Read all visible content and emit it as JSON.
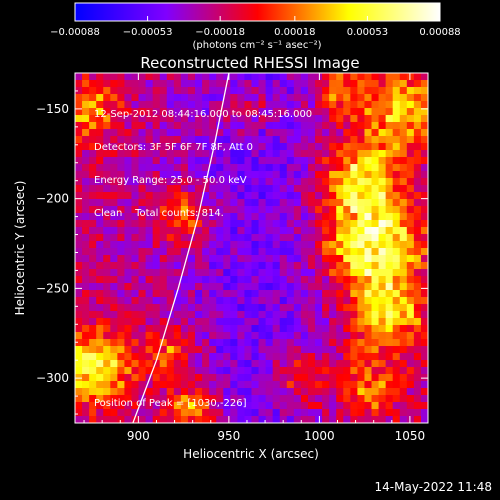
{
  "chart_data": {
    "type": "heatmap",
    "title": "Reconstructed RHESSI Image",
    "xlabel": "Heliocentric X (arcsec)",
    "ylabel": "Heliocentric Y (arcsec)",
    "xlim": [
      865,
      1060
    ],
    "ylim": [
      -325,
      -130
    ],
    "x_ticks": [
      900,
      950,
      1000,
      1050
    ],
    "y_ticks": [
      -150,
      -200,
      -250,
      -300
    ],
    "x_tick_labels": [
      "900",
      "950",
      "1000",
      "1050"
    ],
    "y_tick_labels": [
      "−150",
      "−200",
      "−250",
      "−300"
    ],
    "colorbar": {
      "range": [
        -0.00088,
        0.00088
      ],
      "ticks": [
        -0.00088,
        -0.00053,
        -0.00018,
        0.00018,
        0.00053,
        0.00088
      ],
      "tick_labels": [
        "−0.00088",
        "−0.00053",
        "−0.00018",
        "0.00018",
        "0.00053",
        "0.00088"
      ],
      "label": "(photons cm⁻² s⁻¹ asec⁻²)",
      "colormap": [
        "#0000ff",
        "#8000ff",
        "#ff0000",
        "#ffff00",
        "#ffffff"
      ]
    },
    "annotations": {
      "time_range": "12-Sep-2012 08:44:16.000 to 08:45:16.000",
      "detectors": "Detectors: 3F 5F 6F 7F 8F, Att 0",
      "energy": "Energy Range: 25.0 - 50.0 keV",
      "method": "Clean    Total counts: 814.",
      "peak": "Position of Peak = [1030,-226]"
    },
    "peak": [
      1030,
      -226
    ],
    "limb_curve": [
      [
        897,
        -325
      ],
      [
        910,
        -290
      ],
      [
        922,
        -250
      ],
      [
        933,
        -210
      ],
      [
        942,
        -170
      ],
      [
        950,
        -130
      ]
    ],
    "emission_sources": [
      [
        1030,
        -226,
        0.00088,
        18
      ],
      [
        1022,
        -190,
        0.0007,
        14
      ],
      [
        1038,
        -265,
        0.00062,
        14
      ],
      [
        1045,
        -150,
        0.0006,
        16
      ],
      [
        1028,
        -305,
        0.00045,
        12
      ],
      [
        875,
        -295,
        0.0008,
        14
      ],
      [
        872,
        -150,
        0.0005,
        12
      ],
      [
        925,
        -210,
        0.00045,
        10
      ],
      [
        918,
        -285,
        0.0004,
        10
      ],
      [
        930,
        -318,
        0.00055,
        10
      ],
      [
        990,
        -300,
        0.00035,
        12
      ],
      [
        960,
        -150,
        0.0003,
        10
      ],
      [
        1010,
        -140,
        0.0004,
        10
      ]
    ],
    "footer_timestamp": "14-May-2022 11:48"
  }
}
